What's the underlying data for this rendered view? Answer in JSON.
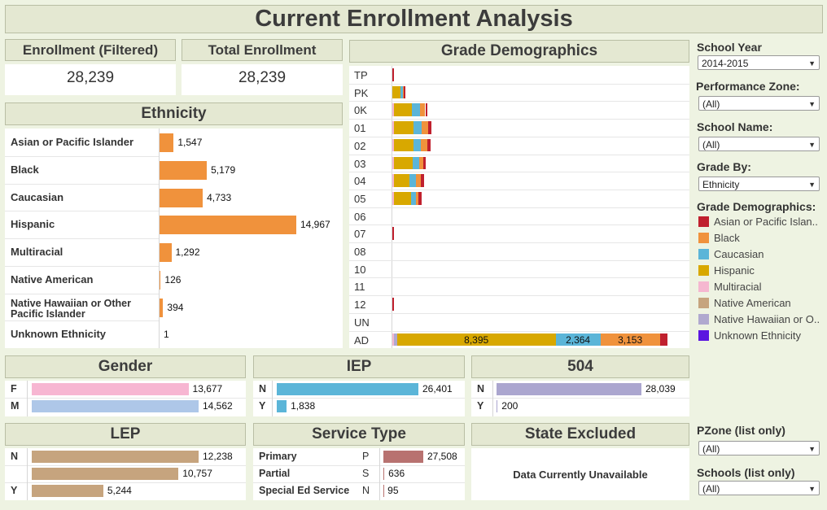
{
  "title": "Current Enrollment Analysis",
  "kpis": {
    "filtered_label": "Enrollment (Filtered)",
    "filtered_value": "28,239",
    "total_label": "Total Enrollment",
    "total_value": "28,239"
  },
  "colors": {
    "asian": "#c0202e",
    "black": "#f0923c",
    "caucasian": "#5bb5d8",
    "hispanic": "#d8a800",
    "multiracial": "#f5b7d0",
    "native_american": "#c6a47e",
    "native_hawaiian": "#b0a9cf",
    "unknown": "#5b16e0",
    "gender_f": "#f7b6d2",
    "gender_m": "#aec7e8",
    "iep": "#5bb5d8",
    "s504": "#aba6cf",
    "lep": "#c6a47e",
    "service": "#b87270"
  },
  "ethnicity": {
    "title": "Ethnicity",
    "chart_data": {
      "type": "bar",
      "categories": [
        "Asian or Pacific Islander",
        "Black",
        "Caucasian",
        "Hispanic",
        "Multiracial",
        "Native American",
        "Native Hawaiian or Other Pacific Islander",
        "Unknown Ethnicity"
      ],
      "values": [
        1547,
        5179,
        4733,
        14967,
        1292,
        126,
        394,
        1
      ],
      "labels": [
        "1,547",
        "5,179",
        "4,733",
        "14,967",
        "1,292",
        "126",
        "394",
        "1"
      ]
    }
  },
  "grade_demographics": {
    "title": "Grade Demographics",
    "chart_data": {
      "type": "bar",
      "stacked": true,
      "orientation": "horizontal",
      "categories": [
        "TP",
        "PK",
        "0K",
        "01",
        "02",
        "03",
        "04",
        "05",
        "06",
        "07",
        "08",
        "10",
        "11",
        "12",
        "UN",
        "AD"
      ],
      "series": [
        {
          "name": "Multiracial",
          "values": [
            0,
            0,
            30,
            30,
            30,
            30,
            30,
            28,
            0,
            0,
            0,
            0,
            0,
            0,
            0,
            98
          ]
        },
        {
          "name": "Native American",
          "values": [
            0,
            0,
            0,
            0,
            0,
            0,
            0,
            0,
            0,
            0,
            0,
            0,
            0,
            0,
            0,
            0
          ]
        },
        {
          "name": "Native Hawaiian or Other Pacific Islander",
          "values": [
            0,
            0,
            0,
            0,
            0,
            0,
            0,
            0,
            0,
            0,
            0,
            0,
            0,
            0,
            0,
            150
          ]
        },
        {
          "name": "Hispanic",
          "values": [
            0,
            450,
            990,
            1070,
            1040,
            1030,
            860,
            940,
            0,
            0,
            0,
            0,
            0,
            0,
            0,
            8395
          ]
        },
        {
          "name": "Caucasian",
          "values": [
            0,
            100,
            390,
            410,
            410,
            330,
            320,
            250,
            0,
            0,
            0,
            0,
            0,
            0,
            0,
            2364
          ]
        },
        {
          "name": "Black",
          "values": [
            0,
            50,
            300,
            330,
            330,
            200,
            280,
            140,
            0,
            0,
            0,
            0,
            0,
            0,
            0,
            3153
          ]
        },
        {
          "name": "Asian or Pacific Islander",
          "values": [
            40,
            50,
            120,
            190,
            190,
            150,
            150,
            140,
            0,
            40,
            0,
            0,
            0,
            40,
            0,
            400
          ]
        }
      ],
      "segment_labels": {
        "AD": [
          "",
          "",
          "",
          "8,395",
          "2,364",
          "3,153",
          ""
        ]
      }
    }
  },
  "controls": {
    "school_year": {
      "label": "School Year",
      "value": "2014-2015"
    },
    "performance_zone": {
      "label": "Performance Zone:",
      "value": "(All)"
    },
    "school_name": {
      "label": "School Name:",
      "value": "(All)"
    },
    "grade_by": {
      "label": "Grade By:",
      "value": "Ethnicity"
    },
    "legend_title": "Grade Demographics:",
    "legend": [
      {
        "name": "Asian or Pacific Islan..",
        "color": "#c0202e"
      },
      {
        "name": "Black",
        "color": "#f0923c"
      },
      {
        "name": "Caucasian",
        "color": "#5bb5d8"
      },
      {
        "name": "Hispanic",
        "color": "#d8a800"
      },
      {
        "name": "Multiracial",
        "color": "#f5b7d0"
      },
      {
        "name": "Native American",
        "color": "#c6a47e"
      },
      {
        "name": "Native Hawaiian or O..",
        "color": "#b0a9cf"
      },
      {
        "name": "Unknown Ethnicity",
        "color": "#5b16e0"
      }
    ],
    "pzone": {
      "label": "PZone (list only)",
      "value": "(All)"
    },
    "schools": {
      "label": "Schools (list only)",
      "value": "(All)"
    }
  },
  "gender": {
    "title": "Gender",
    "chart_data": {
      "type": "bar",
      "categories": [
        "F",
        "M"
      ],
      "values": [
        13677,
        14562
      ],
      "labels": [
        "13,677",
        "14,562"
      ]
    }
  },
  "iep": {
    "title": "IEP",
    "chart_data": {
      "type": "bar",
      "categories": [
        "N",
        "Y"
      ],
      "values": [
        26401,
        1838
      ],
      "labels": [
        "26,401",
        "1,838"
      ]
    }
  },
  "s504": {
    "title": "504",
    "chart_data": {
      "type": "bar",
      "categories": [
        "N",
        "Y"
      ],
      "values": [
        28039,
        200
      ],
      "labels": [
        "28,039",
        "200"
      ]
    }
  },
  "lep": {
    "title": "LEP",
    "chart_data": {
      "type": "bar",
      "categories": [
        "N",
        "",
        "Y"
      ],
      "values": [
        12238,
        10757,
        5244
      ],
      "labels": [
        "12,238",
        "10,757",
        "5,244"
      ]
    }
  },
  "service_type": {
    "title": "Service Type",
    "chart_data": {
      "type": "bar",
      "categories": [
        "Primary",
        "Partial",
        "Special Ed Service"
      ],
      "codes": [
        "P",
        "S",
        "N"
      ],
      "values": [
        27508,
        636,
        95
      ],
      "labels": [
        "27,508",
        "636",
        "95"
      ]
    }
  },
  "state_excluded": {
    "title": "State Excluded",
    "message": "Data Currently Unavailable"
  }
}
